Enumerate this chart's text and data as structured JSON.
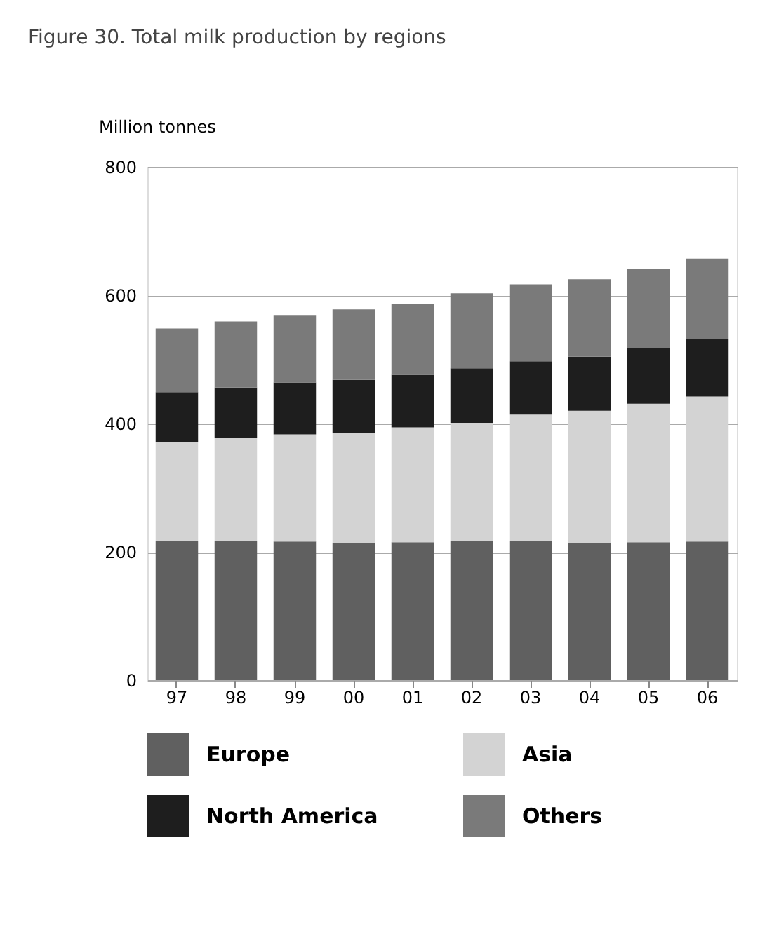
{
  "chart_data": {
    "type": "bar",
    "title": "Figure 30. Total milk production by regions",
    "ylabel": "Million tonnes",
    "categories": [
      "97",
      "98",
      "99",
      "00",
      "01",
      "02",
      "03",
      "04",
      "05",
      "06"
    ],
    "stacked": true,
    "series": [
      {
        "name": "Europe",
        "color": "#606060",
        "values": [
          217,
          217,
          216,
          214,
          215,
          217,
          217,
          214,
          215,
          216
        ]
      },
      {
        "name": "Asia",
        "color": "#d3d3d3",
        "values": [
          154,
          160,
          167,
          171,
          179,
          184,
          197,
          206,
          216,
          226
        ]
      },
      {
        "name": "North America",
        "color": "#1e1e1e",
        "values": [
          78,
          79,
          81,
          83,
          82,
          85,
          83,
          84,
          87,
          90
        ]
      },
      {
        "name": "Others",
        "color": "#7a7a7a",
        "values": [
          99,
          103,
          105,
          110,
          111,
          117,
          120,
          121,
          123,
          125
        ]
      }
    ],
    "ylim": [
      0,
      800
    ],
    "yticks": [
      0,
      200,
      400,
      600,
      800
    ],
    "grid": "y",
    "legend": "bottom"
  }
}
